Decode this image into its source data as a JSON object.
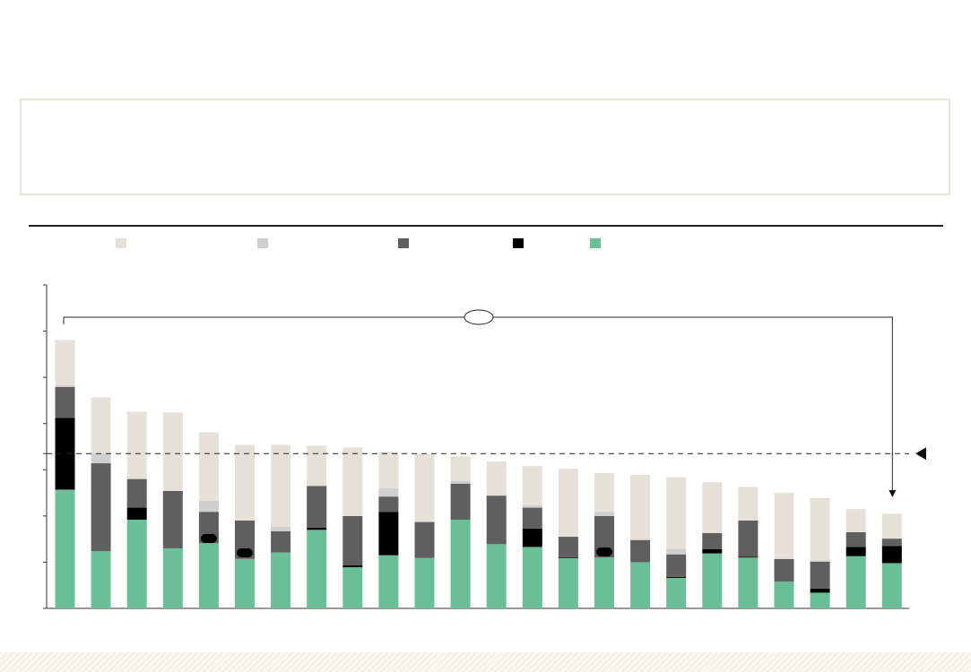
{
  "colors": {
    "beige": "#e6e1d7",
    "light_gray": "#cfcfcf",
    "dark_gray": "#5f5f5f",
    "black": "#000000",
    "green": "#6abf96",
    "reference_line": "#222222"
  },
  "legend": [
    {
      "color_key": "beige"
    },
    {
      "color_key": "light_gray"
    },
    {
      "color_key": "dark_gray"
    },
    {
      "color_key": "black"
    },
    {
      "color_key": "green"
    }
  ],
  "chart_data": {
    "type": "bar",
    "stacked": true,
    "title": "",
    "xlabel": "",
    "ylabel": "",
    "ylim": [
      0,
      7
    ],
    "y_ticks": [
      0,
      1,
      2,
      3,
      3.35,
      4,
      5,
      6,
      7
    ],
    "grid": false,
    "legend_position": "top",
    "categories": [
      "",
      "",
      "",
      "",
      "",
      "",
      "",
      "",
      "",
      "",
      "",
      "",
      "",
      "",
      "",
      "",
      "",
      "",
      "",
      "",
      "",
      "",
      "",
      ""
    ],
    "series": [
      {
        "color_key": "green",
        "values": [
          2.57,
          1.24,
          1.92,
          1.3,
          1.41,
          1.07,
          1.21,
          1.7,
          0.89,
          1.15,
          1.09,
          1.92,
          1.39,
          1.33,
          1.09,
          1.1,
          1.0,
          0.66,
          1.19,
          1.1,
          0.58,
          0.34,
          1.13,
          0.98
        ]
      },
      {
        "color_key": "black",
        "values": [
          1.55,
          0.0,
          0.26,
          0.0,
          0.0,
          0.0,
          0.0,
          0.05,
          0.04,
          0.94,
          0.0,
          0.0,
          0.0,
          0.4,
          0.02,
          0.0,
          0.0,
          0.02,
          0.09,
          0.02,
          0.0,
          0.09,
          0.2,
          0.37
        ]
      },
      {
        "color_key": "dark_gray",
        "values": [
          0.67,
          1.9,
          0.62,
          1.24,
          0.68,
          0.83,
          0.46,
          0.9,
          1.07,
          0.33,
          0.78,
          0.78,
          1.05,
          0.45,
          0.44,
          0.9,
          0.48,
          0.49,
          0.35,
          0.78,
          0.49,
          0.58,
          0.32,
          0.16
        ]
      },
      {
        "color_key": "light_gray",
        "values": [
          0.04,
          0.22,
          0.0,
          0.0,
          0.24,
          0.0,
          0.1,
          0.0,
          0.0,
          0.18,
          0.0,
          0.06,
          0.0,
          0.05,
          0.0,
          0.09,
          0.0,
          0.12,
          0.0,
          0.0,
          0.0,
          0.03,
          0.0,
          0.0
        ]
      },
      {
        "color_key": "beige",
        "values": [
          0.98,
          1.21,
          1.46,
          1.7,
          1.48,
          1.64,
          1.77,
          0.87,
          1.48,
          0.79,
          1.47,
          0.53,
          0.74,
          0.85,
          1.47,
          0.84,
          1.41,
          1.55,
          1.1,
          0.73,
          1.43,
          1.35,
          0.5,
          0.54
        ]
      }
    ],
    "reference_line": 3.35
  }
}
